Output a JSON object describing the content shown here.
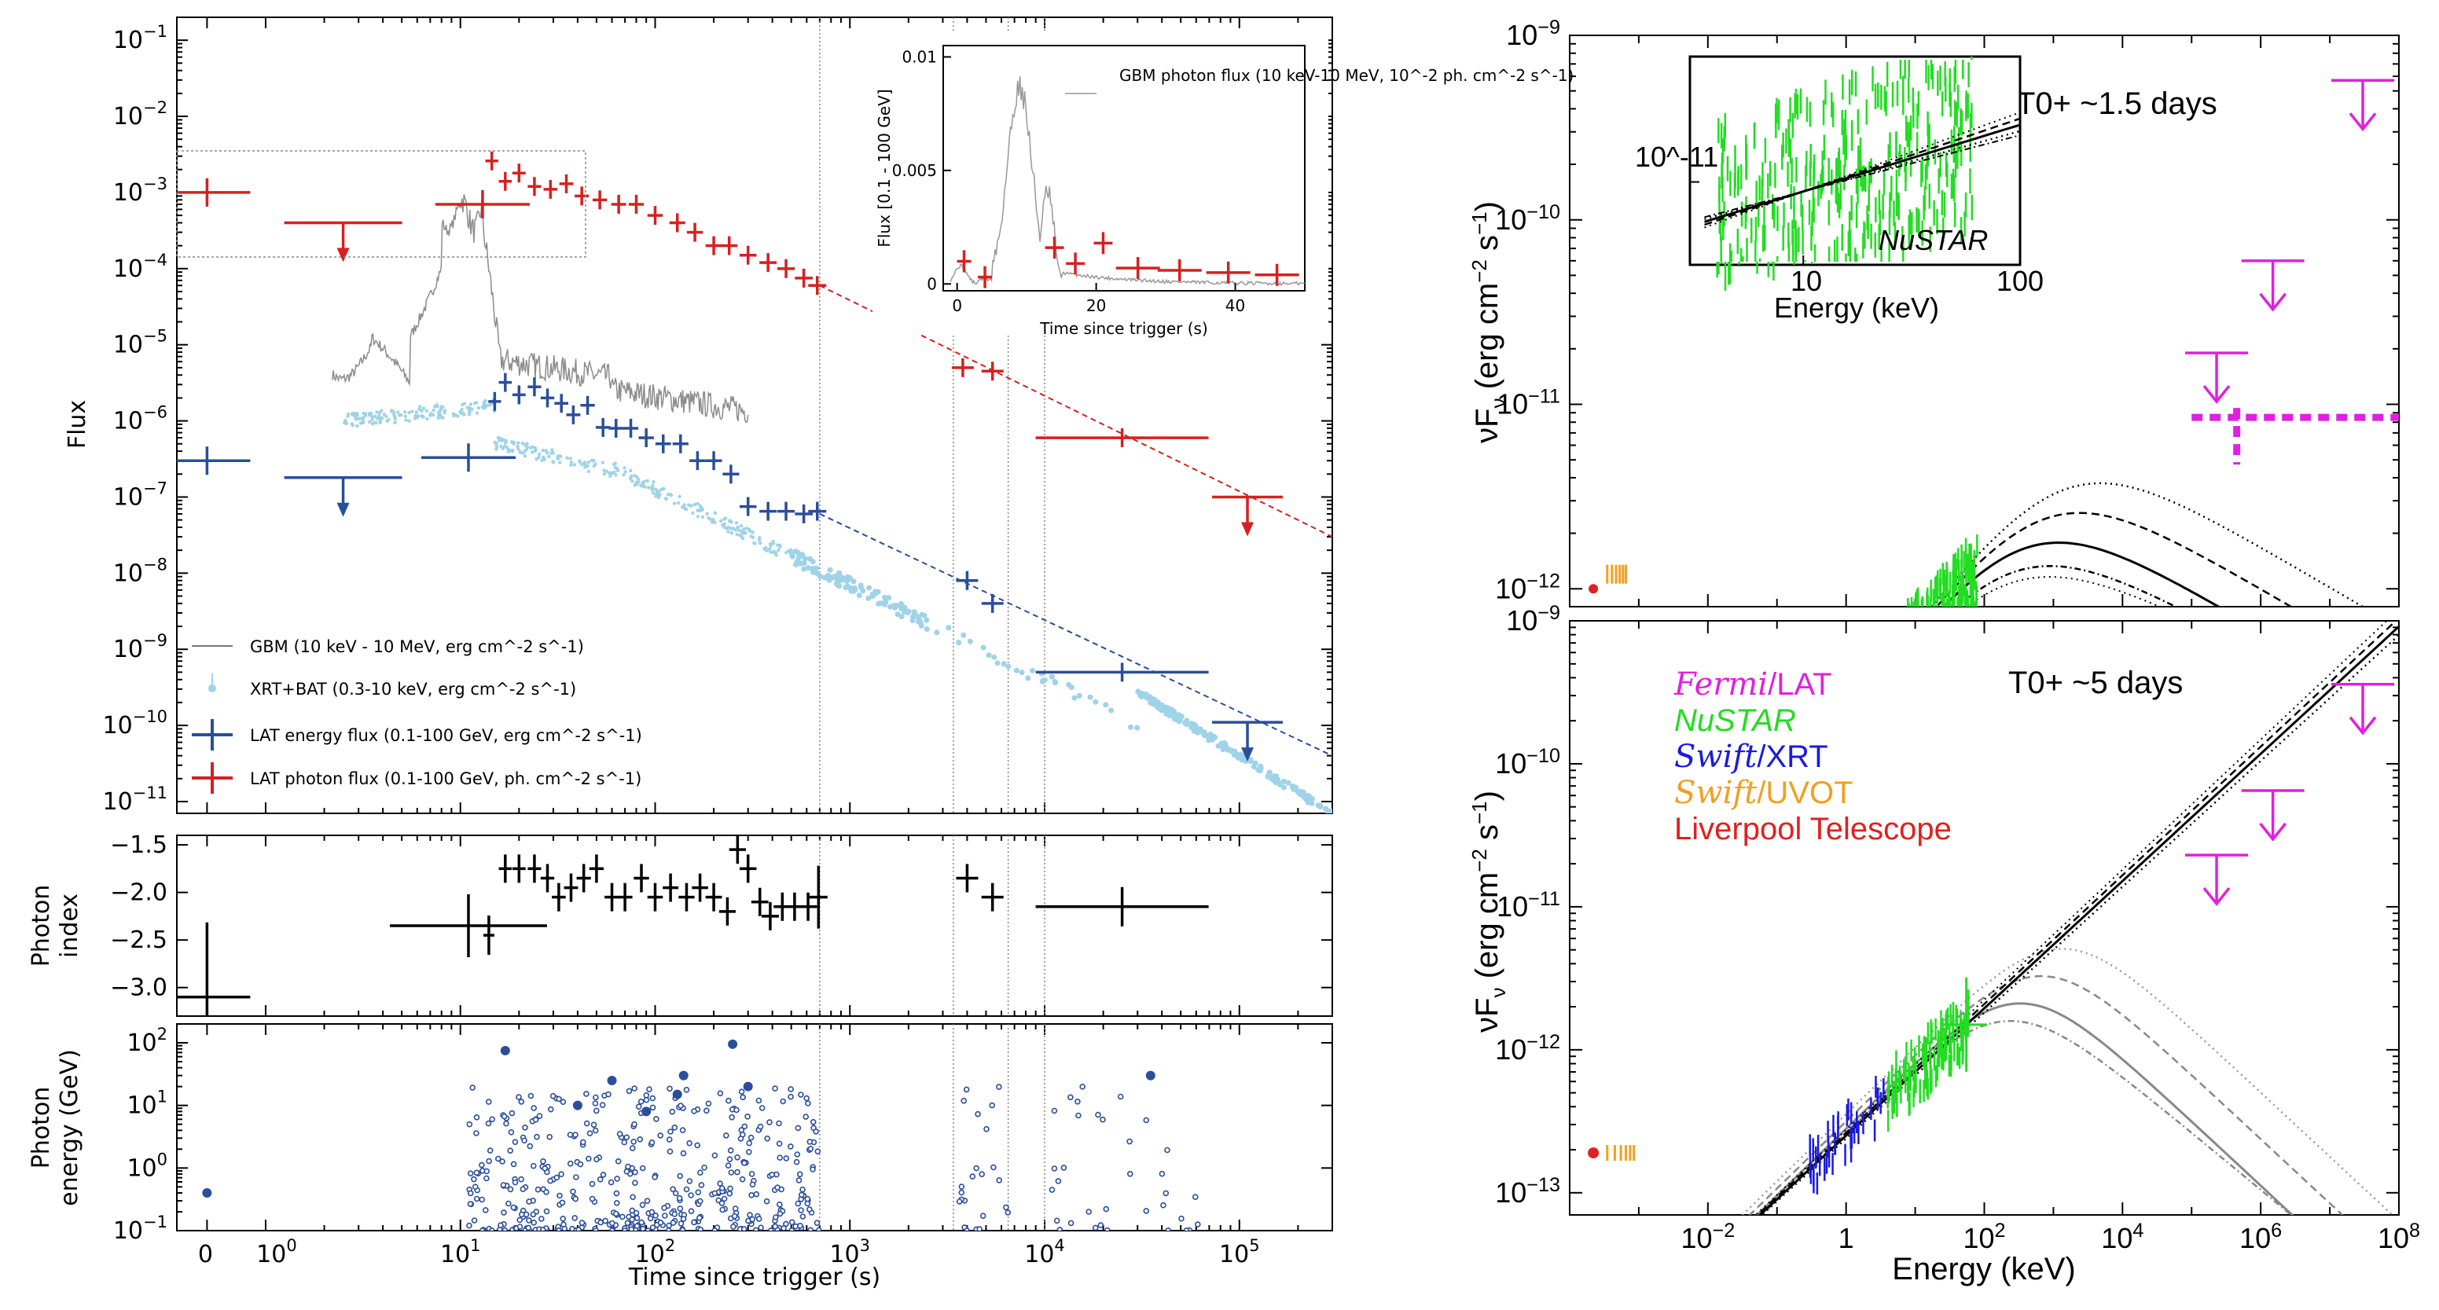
{
  "chart_data": [
    {
      "type": "scatter",
      "panel": "left-top",
      "xscale": "log",
      "yscale": "log",
      "xlabel": "Time since trigger (s)",
      "ylabel": "Flux",
      "xlim": [
        0.35,
        300000
      ],
      "ylim": [
        7e-12,
        0.2
      ],
      "x_ticklabels": [
        "0",
        "10^0",
        "10^1",
        "10^2",
        "10^3",
        "10^4",
        "10^5"
      ],
      "y_ticklabels": [
        "10^-11",
        "10^-10",
        "10^-9",
        "10^-8",
        "10^-7",
        "10^-6",
        "10^-5",
        "10^-4",
        "10^-3",
        "10^-2",
        "10^-1"
      ],
      "vlines": [
        700,
        3400,
        6500,
        10000
      ],
      "legend": [
        "GBM (10 keV - 10 MeV, erg cm^-2 s^-1)",
        "XRT+BAT (0.3-10 keV, erg cm^-2 s^-1)",
        "LAT energy flux (0.1-100 GeV, erg cm^-2 s^-1)",
        "LAT photon flux (0.1-100 GeV, ph. cm^-2 s^-1)"
      ],
      "series": [
        {
          "name": "LAT photon flux",
          "color": "#d62020",
          "points": [
            [
              0.5,
              0.001
            ],
            [
              13,
              0.0007
            ],
            [
              14.5,
              0.0026
            ],
            [
              17,
              0.0014
            ],
            [
              20,
              0.0018
            ],
            [
              24,
              0.0012
            ],
            [
              29,
              0.0011
            ],
            [
              35,
              0.0013
            ],
            [
              42,
              0.0009
            ],
            [
              52,
              0.0008
            ],
            [
              65,
              0.0007
            ],
            [
              80,
              0.0007
            ],
            [
              100,
              0.0005
            ],
            [
              130,
              0.0004
            ],
            [
              160,
              0.0003
            ],
            [
              200,
              0.0002
            ],
            [
              240,
              0.0002
            ],
            [
              300,
              0.00015
            ],
            [
              380,
              0.00012
            ],
            [
              470,
              0.0001
            ],
            [
              580,
              7.5e-05
            ],
            [
              680,
              6e-05
            ],
            [
              3800,
              5e-06
            ],
            [
              5400,
              4.5e-06
            ],
            [
              25000,
              6e-07
            ]
          ],
          "upper_limits": [
            [
              2.5,
              0.0004
            ],
            [
              110000,
              1e-07
            ]
          ],
          "fit": [
            [
              700,
              6e-05
            ],
            [
              300000,
              3e-08
            ]
          ]
        },
        {
          "name": "LAT energy flux",
          "color": "#2a4e9b",
          "points": [
            [
              0.5,
              3e-07
            ],
            [
              11,
              3.3e-07
            ],
            [
              15,
              1.8e-06
            ],
            [
              17,
              3.2e-06
            ],
            [
              20,
              2.2e-06
            ],
            [
              24,
              2.8e-06
            ],
            [
              28,
              2e-06
            ],
            [
              33,
              1.7e-06
            ],
            [
              38,
              1.2e-06
            ],
            [
              45,
              1.6e-06
            ],
            [
              54,
              8.2e-07
            ],
            [
              63,
              8e-07
            ],
            [
              75,
              8e-07
            ],
            [
              90,
              6e-07
            ],
            [
              110,
              5e-07
            ],
            [
              135,
              5e-07
            ],
            [
              165,
              3e-07
            ],
            [
              200,
              3e-07
            ],
            [
              245,
              2e-07
            ],
            [
              300,
              7.5e-08
            ],
            [
              380,
              6.5e-08
            ],
            [
              470,
              6.5e-08
            ],
            [
              580,
              6e-08
            ],
            [
              680,
              6.5e-08
            ],
            [
              4000,
              8e-09
            ],
            [
              5400,
              4e-09
            ],
            [
              25000,
              5e-10
            ]
          ],
          "upper_limits": [
            [
              2.5,
              1.8e-07
            ],
            [
              110000,
              1.1e-10
            ]
          ],
          "fit": [
            [
              700,
              6e-08
            ],
            [
              300000,
              4e-11
            ]
          ]
        },
        {
          "name": "GBM",
          "color": "#8c8c8c"
        },
        {
          "name": "XRT+BAT",
          "color": "#9fd3e8"
        }
      ],
      "inset": {
        "xlabel": "Time since trigger (s)",
        "ylabel": "Flux [0.1 - 100 GeV]",
        "xlim": [
          -2,
          50
        ],
        "ylim": [
          -0.0003,
          0.0105
        ],
        "x_ticklabels": [
          "0",
          "20",
          "40"
        ],
        "y_ticklabels": [
          "0",
          "0.005",
          "0.01"
        ],
        "legend": "GBM photon flux (10 keV-10 MeV, 10^-2 ph. cm^-2 s^-1)",
        "lat_points": [
          [
            1,
            0.001
          ],
          [
            4,
            0.0003
          ],
          [
            14,
            0.0016
          ],
          [
            17,
            0.0009
          ],
          [
            21,
            0.0018
          ],
          [
            26,
            0.0007
          ],
          [
            32,
            0.0006
          ],
          [
            39,
            0.0005
          ],
          [
            46,
            0.0004
          ]
        ]
      }
    },
    {
      "type": "scatter",
      "panel": "left-middle",
      "ylabel": "Photon index",
      "ylim": [
        -3.3,
        -1.4
      ],
      "y_ticklabels": [
        "-3.0",
        "-2.5",
        "-2.0",
        "-1.5"
      ],
      "points": [
        [
          0.5,
          -3.1
        ],
        [
          11,
          -2.35
        ],
        [
          14,
          -2.45
        ],
        [
          17,
          -1.75
        ],
        [
          20,
          -1.75
        ],
        [
          24,
          -1.75
        ],
        [
          28,
          -1.85
        ],
        [
          32,
          -2.05
        ],
        [
          37,
          -1.95
        ],
        [
          43,
          -1.85
        ],
        [
          50,
          -1.75
        ],
        [
          60,
          -2.05
        ],
        [
          70,
          -2.05
        ],
        [
          85,
          -1.85
        ],
        [
          100,
          -2.05
        ],
        [
          120,
          -1.95
        ],
        [
          145,
          -2.05
        ],
        [
          170,
          -1.95
        ],
        [
          200,
          -2.05
        ],
        [
          235,
          -2.2
        ],
        [
          265,
          -1.55
        ],
        [
          300,
          -1.75
        ],
        [
          345,
          -2.1
        ],
        [
          390,
          -2.25
        ],
        [
          450,
          -2.15
        ],
        [
          520,
          -2.15
        ],
        [
          610,
          -2.15
        ],
        [
          690,
          -2.05
        ],
        [
          4000,
          -1.85
        ],
        [
          5400,
          -2.05
        ],
        [
          25000,
          -2.15
        ]
      ]
    },
    {
      "type": "scatter",
      "panel": "left-bottom",
      "ylabel": "Photon energy (GeV)",
      "ylim": [
        0.1,
        200
      ],
      "y_ticklabels": [
        "10^-1",
        "10^0",
        "10^1",
        "10^2"
      ],
      "large_points": [
        [
          0.5,
          0.4
        ],
        [
          17,
          75
        ],
        [
          40,
          10
        ],
        [
          60,
          25
        ],
        [
          90,
          8
        ],
        [
          140,
          30
        ],
        [
          250,
          95
        ],
        [
          130,
          15
        ],
        [
          300,
          20
        ],
        [
          35000,
          30
        ]
      ]
    },
    {
      "type": "line",
      "panel": "right-top",
      "xscale": "log",
      "yscale": "log",
      "annotation": "T0+ ~1.5 days",
      "ylabel": "νFν (erg cm^-2 s^-1)",
      "ylim": [
        8e-13,
        1e-09
      ],
      "y_ticklabels": [
        "10^-12",
        "10^-11",
        "10^-10",
        "10^-9"
      ],
      "inset": {
        "xlabel": "Energy (keV)",
        "label": "NuSTAR",
        "x_ticklabels": [
          "10",
          "100"
        ],
        "y_ticklabel": "10^-11"
      }
    },
    {
      "type": "line",
      "panel": "right-bottom",
      "xscale": "log",
      "yscale": "log",
      "annotation": "T0+ ~5 days",
      "xlabel": "Energy (keV)",
      "xlim": [
        0.0001,
        100000000
      ],
      "x_ticklabels": [
        "10^-2",
        "1",
        "10^2",
        "10^4",
        "10^6",
        "10^8"
      ],
      "ylabel": "νFν (erg cm^-2 s^-1)",
      "ylim": [
        7e-14,
        1e-09
      ],
      "y_ticklabels": [
        "10^-13",
        "10^-12",
        "10^-11",
        "10^-10",
        "10^-9"
      ],
      "legend": [
        {
          "instrument": "Fermi",
          "suffix": "/LAT",
          "color": "#e020e0"
        },
        {
          "instrument": "NuSTAR",
          "suffix": "",
          "color": "#22dd22"
        },
        {
          "instrument": "Swift",
          "suffix": "/XRT",
          "color": "#1a1ae0"
        },
        {
          "instrument": "Swift",
          "suffix": "/UVOT",
          "color": "#f0a020"
        },
        {
          "instrument": "Liverpool Telescope",
          "suffix": "",
          "color": "#e02020"
        }
      ]
    }
  ]
}
